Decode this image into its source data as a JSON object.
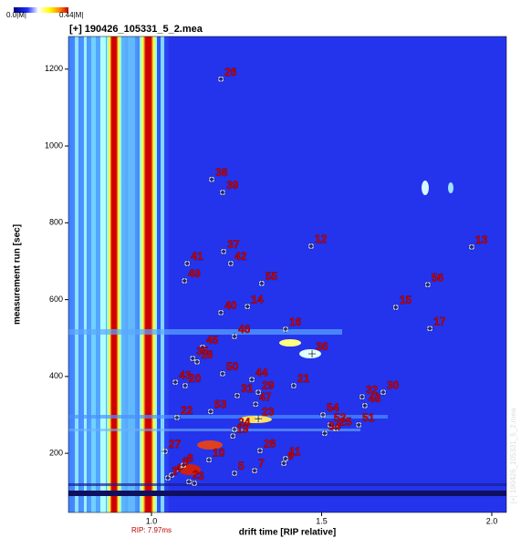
{
  "chart_data": {
    "type": "scatter",
    "title": "[+] 190426_105331_5_2.mea",
    "side_label": "[+] 190426_105331_5_2.mea",
    "x_label": "drift time [RIP relative]",
    "y_label": "measurement run [sec]",
    "rip_label": "RIP: 7.97ms",
    "rip_x": 1,
    "colorbar_min": "0.0|M|",
    "colorbar_max": "0.44|M|",
    "xlim": [
      0.756,
      2.043
    ],
    "ylim": [
      46,
      1285
    ],
    "xticks": [
      {
        "value": 1,
        "label": "1.0"
      },
      1.5,
      {
        "value": 2,
        "label": "2.0"
      }
    ],
    "yticks": [
      200,
      400,
      600,
      800,
      1000,
      1200
    ],
    "marker_color": "#c80000",
    "points": [
      {
        "label": "26",
        "x": 1.204,
        "y": 1174
      },
      {
        "label": "38",
        "x": 1.177,
        "y": 913
      },
      {
        "label": "39",
        "x": 1.209,
        "y": 879
      },
      {
        "label": "12",
        "x": 1.469,
        "y": 739
      },
      {
        "label": "13",
        "x": 1.941,
        "y": 737
      },
      {
        "label": "37",
        "x": 1.212,
        "y": 725
      },
      {
        "label": "42",
        "x": 1.233,
        "y": 694
      },
      {
        "label": "41",
        "x": 1.105,
        "y": 694
      },
      {
        "label": "49",
        "x": 1.097,
        "y": 649
      },
      {
        "label": "56",
        "x": 1.812,
        "y": 639
      },
      {
        "label": "55",
        "x": 1.324,
        "y": 642
      },
      {
        "label": "15",
        "x": 1.718,
        "y": 580
      },
      {
        "label": "40",
        "x": 1.204,
        "y": 566
      },
      {
        "label": "14",
        "x": 1.282,
        "y": 582
      },
      {
        "label": "17",
        "x": 1.818,
        "y": 525
      },
      {
        "label": "16",
        "x": 1.394,
        "y": 523
      },
      {
        "label": "46",
        "x": 1.244,
        "y": 504
      },
      {
        "label": "45",
        "x": 1.15,
        "y": 476
      },
      {
        "label": "36",
        "x": 1.472,
        "y": 459
      },
      {
        "label": "35",
        "x": 1.121,
        "y": 447
      },
      {
        "label": "18",
        "x": 1.134,
        "y": 438
      },
      {
        "label": "50",
        "x": 1.209,
        "y": 407
      },
      {
        "label": "44",
        "x": 1.295,
        "y": 392
      },
      {
        "label": "43",
        "x": 1.07,
        "y": 385
      },
      {
        "label": "20",
        "x": 1.099,
        "y": 376
      },
      {
        "label": "21",
        "x": 1.418,
        "y": 376
      },
      {
        "label": "31",
        "x": 1.252,
        "y": 350
      },
      {
        "label": "29",
        "x": 1.314,
        "y": 359
      },
      {
        "label": "32",
        "x": 1.619,
        "y": 347
      },
      {
        "label": "30",
        "x": 1.681,
        "y": 359
      },
      {
        "label": "47",
        "x": 1.306,
        "y": 328
      },
      {
        "label": "48",
        "x": 1.627,
        "y": 324
      },
      {
        "label": "53",
        "x": 1.174,
        "y": 309
      },
      {
        "label": "22",
        "x": 1.075,
        "y": 293
      },
      {
        "label": "23",
        "x": 1.314,
        "y": 290
      },
      {
        "label": "54",
        "x": 1.504,
        "y": 300
      },
      {
        "label": "24",
        "x": 1.244,
        "y": 262
      },
      {
        "label": "19",
        "x": 1.239,
        "y": 245
      },
      {
        "label": "52",
        "x": 1.525,
        "y": 274
      },
      {
        "label": "25",
        "x": 1.542,
        "y": 264
      },
      {
        "label": "34",
        "x": 1.509,
        "y": 252
      },
      {
        "label": "51",
        "x": 1.609,
        "y": 274
      },
      {
        "label": "27",
        "x": 1.04,
        "y": 205
      },
      {
        "label": "28",
        "x": 1.319,
        "y": 207
      },
      {
        "label": "10",
        "x": 1.169,
        "y": 183
      },
      {
        "label": "11",
        "x": 1.394,
        "y": 186
      },
      {
        "label": "9",
        "x": 1.389,
        "y": 174
      },
      {
        "label": "8",
        "x": 1.094,
        "y": 169
      },
      {
        "label": "6",
        "x": 1.08,
        "y": 160
      },
      {
        "label": "7",
        "x": 1.303,
        "y": 155
      },
      {
        "label": "5",
        "x": 1.244,
        "y": 148
      },
      {
        "label": "4",
        "x": 1.059,
        "y": 143
      },
      {
        "label": "3",
        "x": 1.126,
        "y": 122
      },
      {
        "label": "2",
        "x": 1.11,
        "y": 126
      },
      {
        "label": "1",
        "x": 1.048,
        "y": 136
      }
    ]
  }
}
